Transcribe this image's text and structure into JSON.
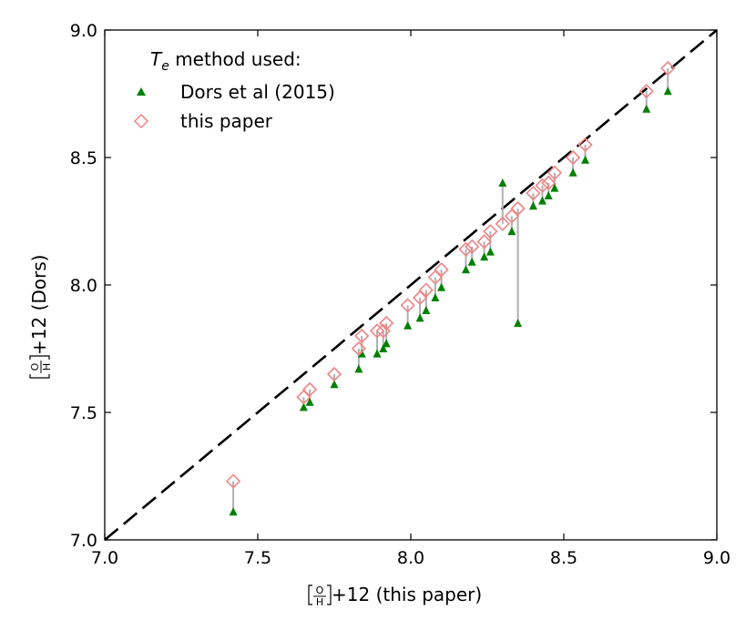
{
  "chart_data": {
    "type": "scatter",
    "title": "",
    "xlabel": "+12 (this paper)",
    "ylabel": "+12 (Dors)",
    "ratio_label": {
      "numerator": "O",
      "denominator": "H"
    },
    "xlim": [
      7.0,
      9.0
    ],
    "ylim": [
      7.0,
      9.0
    ],
    "x_ticks": [
      "7.0",
      "7.5",
      "8.0",
      "8.5",
      "9.0"
    ],
    "y_ticks": [
      "7.0",
      "7.5",
      "8.0",
      "8.5",
      "9.0"
    ],
    "grid": false,
    "reference_line": {
      "style": "dashed",
      "color": "#000000",
      "from": [
        7.0,
        7.0
      ],
      "to": [
        9.0,
        9.0
      ]
    },
    "connector_color": "#b0b0b0",
    "legend": {
      "position": "top-left",
      "title_italic": "T",
      "title_sub": "e",
      "title_rest": " method used:"
    },
    "series": [
      {
        "name": "Dors et al (2015)",
        "marker": "triangle",
        "color": "#008000",
        "points": [
          [
            7.42,
            7.11
          ],
          [
            7.65,
            7.52
          ],
          [
            7.67,
            7.54
          ],
          [
            7.75,
            7.61
          ],
          [
            7.83,
            7.67
          ],
          [
            7.84,
            7.73
          ],
          [
            7.89,
            7.73
          ],
          [
            7.91,
            7.75
          ],
          [
            7.92,
            7.77
          ],
          [
            7.99,
            7.84
          ],
          [
            8.03,
            7.87
          ],
          [
            8.05,
            7.9
          ],
          [
            8.08,
            7.95
          ],
          [
            8.1,
            7.99
          ],
          [
            8.18,
            8.06
          ],
          [
            8.2,
            8.09
          ],
          [
            8.24,
            8.11
          ],
          [
            8.26,
            8.13
          ],
          [
            8.3,
            8.4
          ],
          [
            8.33,
            8.21
          ],
          [
            8.35,
            7.85
          ],
          [
            8.4,
            8.31
          ],
          [
            8.43,
            8.33
          ],
          [
            8.45,
            8.35
          ],
          [
            8.47,
            8.38
          ],
          [
            8.53,
            8.44
          ],
          [
            8.57,
            8.49
          ],
          [
            8.77,
            8.69
          ],
          [
            8.84,
            8.76
          ]
        ]
      },
      {
        "name": "this paper",
        "marker": "diamond",
        "color": "#ee8585",
        "points": [
          [
            7.42,
            7.23
          ],
          [
            7.65,
            7.56
          ],
          [
            7.67,
            7.59
          ],
          [
            7.75,
            7.65
          ],
          [
            7.83,
            7.75
          ],
          [
            7.84,
            7.8
          ],
          [
            7.89,
            7.82
          ],
          [
            7.91,
            7.82
          ],
          [
            7.92,
            7.85
          ],
          [
            7.99,
            7.92
          ],
          [
            8.03,
            7.95
          ],
          [
            8.05,
            7.98
          ],
          [
            8.08,
            8.03
          ],
          [
            8.1,
            8.06
          ],
          [
            8.18,
            8.14
          ],
          [
            8.2,
            8.15
          ],
          [
            8.24,
            8.17
          ],
          [
            8.26,
            8.21
          ],
          [
            8.3,
            8.24
          ],
          [
            8.33,
            8.27
          ],
          [
            8.35,
            8.3
          ],
          [
            8.4,
            8.36
          ],
          [
            8.43,
            8.39
          ],
          [
            8.45,
            8.4
          ],
          [
            8.47,
            8.44
          ],
          [
            8.53,
            8.5
          ],
          [
            8.57,
            8.55
          ],
          [
            8.77,
            8.76
          ],
          [
            8.84,
            8.85
          ]
        ]
      }
    ]
  }
}
